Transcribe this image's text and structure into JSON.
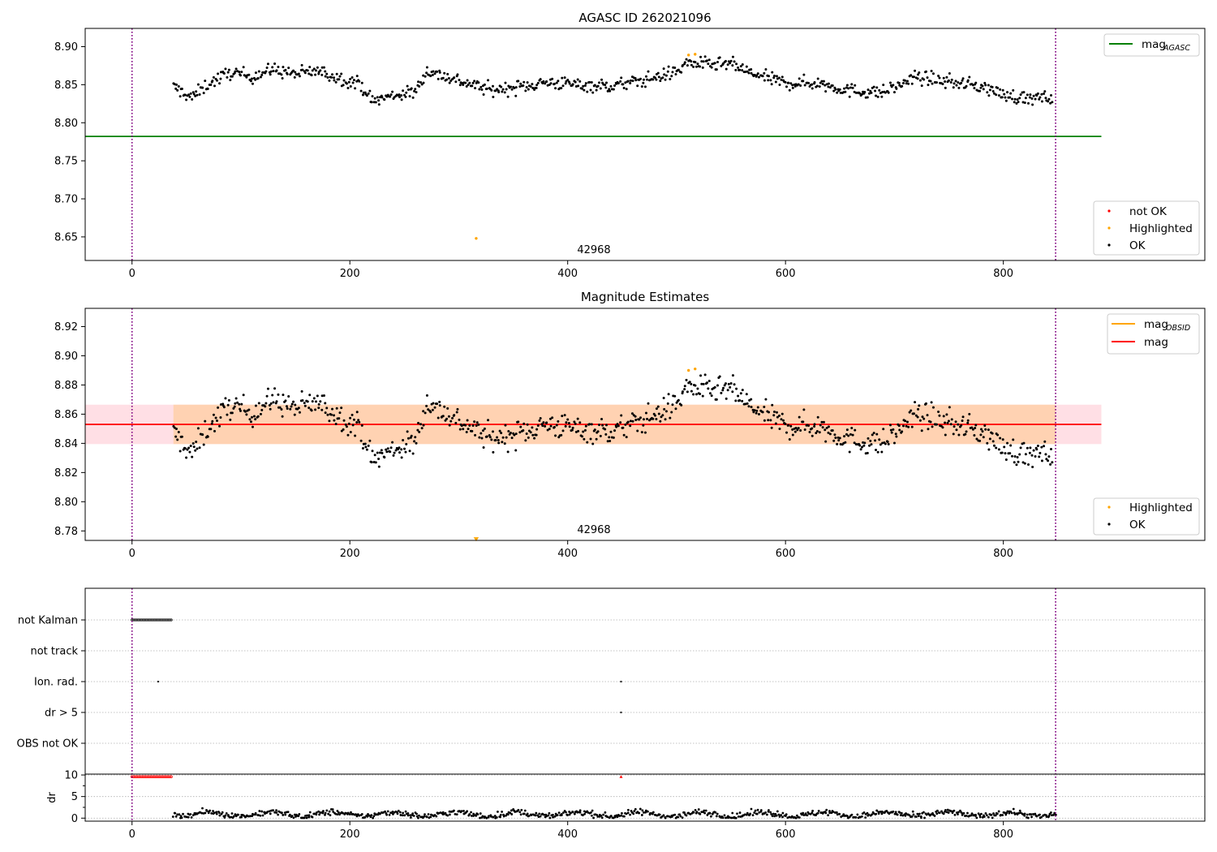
{
  "chart_data": [
    {
      "type": "scatter",
      "title": "AGASC ID 262021096",
      "xlim": [
        -43,
        985
      ],
      "ylim": [
        8.619,
        8.924
      ],
      "xticks": [
        "0",
        "200",
        "400",
        "600",
        "800"
      ],
      "yticks": [
        "8.65",
        "8.70",
        "8.75",
        "8.80",
        "8.85",
        "8.90"
      ],
      "annotation": "42968",
      "vlines_x": [
        0,
        848
      ],
      "hline": {
        "name": "mag_AGASC",
        "value": 8.782,
        "color": "#008000",
        "x_range": [
          -43,
          890
        ]
      },
      "trend": {
        "x": [
          38,
          55,
          70,
          90,
          110,
          130,
          150,
          170,
          190,
          210,
          220,
          240,
          260,
          270,
          290,
          310,
          330,
          350,
          380,
          410,
          440,
          470,
          500,
          510,
          530,
          550,
          570,
          600,
          630,
          660,
          690,
          720,
          750,
          780,
          800,
          820,
          845
        ],
        "y": [
          8.847,
          8.833,
          8.851,
          8.866,
          8.861,
          8.87,
          8.864,
          8.868,
          8.859,
          8.851,
          8.828,
          8.836,
          8.84,
          8.868,
          8.86,
          8.851,
          8.843,
          8.846,
          8.853,
          8.85,
          8.848,
          8.856,
          8.867,
          8.879,
          8.876,
          8.877,
          8.864,
          8.852,
          8.852,
          8.842,
          8.84,
          8.86,
          8.854,
          8.848,
          8.837,
          8.832,
          8.832
        ],
        "noise": 0.008,
        "step": 1
      },
      "highlighted": [
        {
          "x": 316,
          "y": 8.648
        },
        {
          "x": 511,
          "y": 8.889
        },
        {
          "x": 517,
          "y": 8.89
        }
      ],
      "legend_lines": [
        {
          "label": "mag",
          "sub": "AGASC",
          "color": "#008000"
        }
      ],
      "legend_points": [
        {
          "label": "not OK",
          "color": "#ff0000"
        },
        {
          "label": "Highlighted",
          "color": "#ffa500"
        },
        {
          "label": "OK",
          "color": "#000000"
        }
      ]
    },
    {
      "type": "scatter",
      "title": "Magnitude Estimates",
      "xlim": [
        -43,
        985
      ],
      "ylim": [
        8.7735,
        8.9325
      ],
      "xticks": [
        "0",
        "200",
        "400",
        "600",
        "800"
      ],
      "yticks": [
        "8.78",
        "8.80",
        "8.82",
        "8.84",
        "8.86",
        "8.88",
        "8.90",
        "8.92"
      ],
      "annotation": "42968",
      "vlines_x": [
        0,
        848
      ],
      "mag": {
        "name": "mag",
        "value": 8.853,
        "color": "#ff0000"
      },
      "band": {
        "low": 8.8395,
        "high": 8.8665,
        "x_range": [
          -43,
          890
        ]
      },
      "trend_ref": 0,
      "highlighted": [
        {
          "x": 316,
          "y": 8.774,
          "marker": "triangle-down"
        },
        {
          "x": 511,
          "y": 8.89
        },
        {
          "x": 517,
          "y": 8.891
        }
      ],
      "legend_lines": [
        {
          "label": "mag",
          "sub": "OBSID",
          "color": "#ffa500"
        },
        {
          "label": "mag",
          "sub": "",
          "color": "#ff0000"
        }
      ],
      "legend_points": [
        {
          "label": "Highlighted",
          "color": "#ffa500"
        },
        {
          "label": "OK",
          "color": "#000000"
        }
      ]
    },
    {
      "type": "scatter",
      "title": "",
      "xlim": [
        -43,
        985
      ],
      "xticks": [
        "0",
        "200",
        "400",
        "600",
        "800"
      ],
      "vlines_x": [
        0,
        848
      ],
      "flags": [
        "not Kalman",
        "not track",
        "Ion. rad.",
        "dr > 5",
        "OBS not OK"
      ],
      "flag_points": {
        "not Kalman": {
          "x_from": 0,
          "x_to": 37,
          "step": 1.5
        },
        "Ion. rad.": [
          24,
          449
        ],
        "dr > 5": [
          449
        ]
      },
      "dr": {
        "ylabel": "dr",
        "yticks": [
          "0",
          "5",
          "10"
        ],
        "ylim": [
          -0.7,
          10.2
        ],
        "red_points": {
          "x_from": 0,
          "x_to": 37,
          "step": 1.5,
          "extra": [
            449
          ],
          "value": 9.6
        },
        "noise_from": 38,
        "noise_to": 848
      }
    }
  ]
}
